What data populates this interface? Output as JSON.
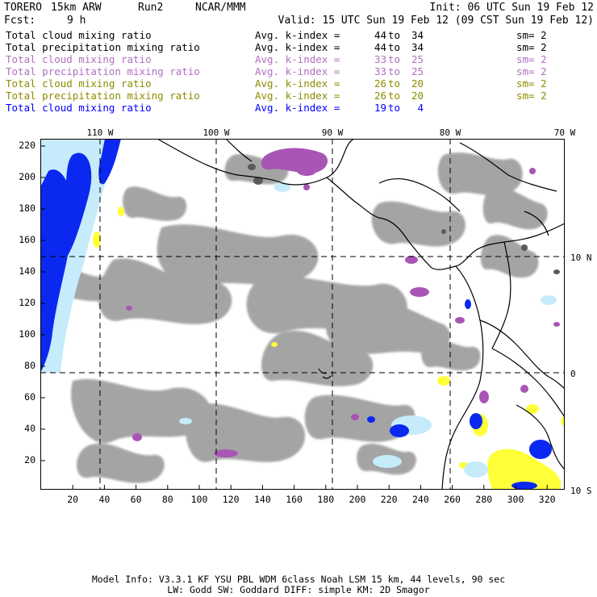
{
  "header": {
    "model": "TORERO",
    "resolution": "15km ARW",
    "run": "Run2",
    "org": "NCAR/MMM",
    "init": "Init: 06 UTC Sun 19 Feb 12",
    "fcst_label": "Fcst:",
    "fcst_value": "9 h",
    "valid": "Valid: 15 UTC Sun 19 Feb 12 (09 CST Sun 19 Feb 12)"
  },
  "legend": [
    {
      "label": "Total cloud mixing ratio",
      "avg": "Avg. k-index =",
      "k1": "44",
      "to": "to",
      "k2": "34",
      "sm": "sm= 2",
      "color": "#000000"
    },
    {
      "label": "Total precipitation mixing ratio",
      "avg": "Avg. k-index =",
      "k1": "44",
      "to": "to",
      "k2": "34",
      "sm": "sm= 2",
      "color": "#000000"
    },
    {
      "label": "Total cloud mixing ratio",
      "avg": "Avg. k-index =",
      "k1": "33",
      "to": "to",
      "k2": "25",
      "sm": "sm= 2",
      "color": "#b070c0"
    },
    {
      "label": "Total precipitation mixing ratio",
      "avg": "Avg. k-index =",
      "k1": "33",
      "to": "to",
      "k2": "25",
      "sm": "sm= 2",
      "color": "#b070c0"
    },
    {
      "label": "Total cloud mixing ratio",
      "avg": "Avg. k-index =",
      "k1": "26",
      "to": "to",
      "k2": "20",
      "sm": "sm= 2",
      "color": "#8c8c00"
    },
    {
      "label": "Total precipitation mixing ratio",
      "avg": "Avg. k-index =",
      "k1": "26",
      "to": "to",
      "k2": "20",
      "sm": "sm= 2",
      "color": "#8c8c00"
    },
    {
      "label": "Total cloud mixing ratio",
      "avg": "Avg. k-index =",
      "k1": "19",
      "to": "to",
      "k2": "4",
      "sm": "",
      "color": "#0000ff"
    }
  ],
  "map": {
    "grid_x_ticks": [
      "20",
      "40",
      "60",
      "80",
      "100",
      "120",
      "140",
      "160",
      "180",
      "200",
      "220",
      "240",
      "260",
      "280",
      "300",
      "320"
    ],
    "grid_y_ticks": [
      "220",
      "200",
      "180",
      "160",
      "140",
      "120",
      "100",
      "80",
      "60",
      "40",
      "20"
    ],
    "lon_labels": [
      "110 W",
      "100 W",
      "90 W",
      "80 W",
      "70 W"
    ],
    "lat_labels": [
      "10 N",
      "0",
      "10 S"
    ],
    "colors": {
      "gray": "#9a9a9a",
      "dark_gray": "#666666",
      "purple": "#a050b0",
      "yellow": "#ffff40",
      "light_blue": "#c8ecff",
      "blue": "#0020f0"
    }
  },
  "footer": {
    "line1": "Model Info: V3.3.1    KF      YSU PBL  WDM 6class  Noah LSM  15 km,   44 levels,   90 sec",
    "line2": "LW: Godd SW: Goddard DIFF: simple KM: 2D Smagor"
  }
}
